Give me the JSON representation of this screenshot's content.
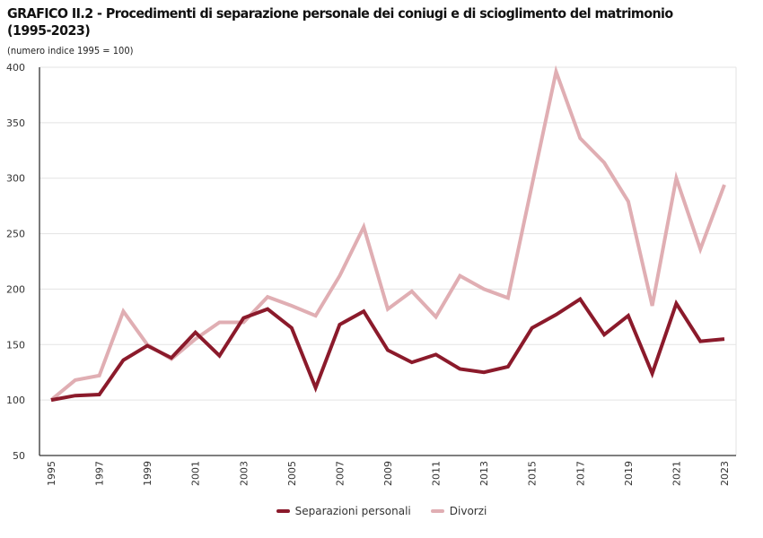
{
  "header": {
    "title": "GRAFICO II.2 - Procedimenti di separazione personale dei coniugi e di scioglimento del matrimonio (1995-2023)",
    "subtitle": "(numero indice 1995 = 100)"
  },
  "chart_data": {
    "type": "line",
    "title": "GRAFICO II.2 - Procedimenti di separazione personale dei coniugi e di scioglimento del matrimonio (1995-2023)",
    "subtitle": "(numero indice 1995 = 100)",
    "xlabel": "",
    "ylabel": "",
    "x": [
      1995,
      1996,
      1997,
      1998,
      1999,
      2000,
      2001,
      2002,
      2003,
      2004,
      2005,
      2006,
      2007,
      2008,
      2009,
      2010,
      2011,
      2012,
      2013,
      2014,
      2015,
      2016,
      2017,
      2018,
      2019,
      2020,
      2021,
      2022,
      2023
    ],
    "x_tick_labels": [
      "1995",
      "1997",
      "1999",
      "2001",
      "2003",
      "2005",
      "2007",
      "2009",
      "2011",
      "2013",
      "2015",
      "2017",
      "2019",
      "2021",
      "2023"
    ],
    "ylim": [
      50,
      400
    ],
    "y_ticks": [
      50,
      100,
      150,
      200,
      250,
      300,
      350,
      400
    ],
    "grid": true,
    "legend_position": "bottom",
    "series": [
      {
        "name": "Separazioni personali",
        "color": "#8B1A2B",
        "values": [
          100,
          104,
          105,
          136,
          149,
          138,
          161,
          140,
          174,
          182,
          165,
          111,
          168,
          180,
          145,
          134,
          141,
          128,
          125,
          130,
          165,
          177,
          191,
          159,
          176,
          124,
          187,
          153,
          155
        ]
      },
      {
        "name": "Divorzi",
        "color": "#E0AEB3",
        "values": [
          100,
          118,
          122,
          180,
          150,
          137,
          155,
          170,
          170,
          193,
          185,
          176,
          212,
          256,
          182,
          198,
          175,
          212,
          200,
          192,
          294,
          396,
          336,
          314,
          279,
          185,
          300,
          236,
          294
        ]
      }
    ]
  }
}
